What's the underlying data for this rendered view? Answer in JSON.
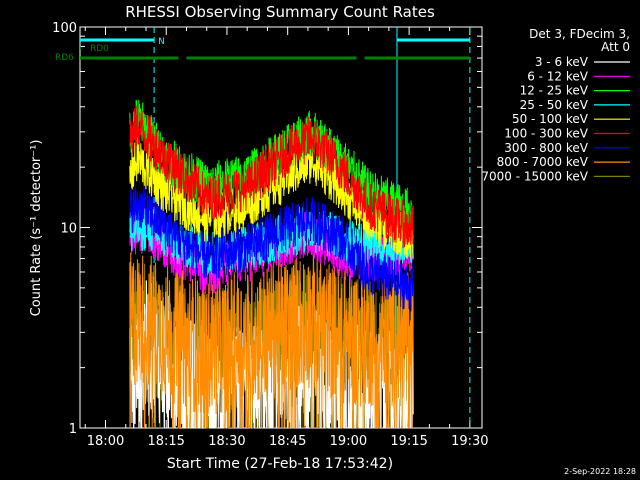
{
  "chart_data": {
    "type": "line",
    "title": "RHESSI Observing Summary Count Rates",
    "xlabel": "Start Time (27-Feb-18 17:53:42)",
    "ylabel": "Count Rate (s⁻¹ detector⁻¹)",
    "yscale": "log",
    "ylim": [
      1,
      100
    ],
    "xlim": [
      "17:53:42",
      "19:33:00"
    ],
    "x_ticks": [
      "18:00",
      "18:15",
      "18:30",
      "18:45",
      "19:00",
      "19:15",
      "19:30"
    ],
    "y_ticks": [
      "1",
      "10",
      "100"
    ],
    "legend_title": [
      "Det 3, FDecim 3,",
      "Att 0"
    ],
    "legend_position": "right",
    "data_start": "18:06",
    "data_end": "19:16",
    "series": [
      {
        "name": "3 - 6 keV",
        "color": "#ffffff",
        "x": [
          "18:06",
          "18:10",
          "18:15",
          "18:25",
          "18:40",
          "18:50",
          "19:00",
          "19:10",
          "19:15"
        ],
        "values": [
          1.6,
          2.5,
          2.2,
          1.4,
          1.6,
          2.0,
          1.5,
          1.4,
          1.3
        ]
      },
      {
        "name": "6 - 12 keV",
        "color": "#ff00ff",
        "x": [
          "18:06",
          "18:10",
          "18:15",
          "18:25",
          "18:40",
          "18:50",
          "19:00",
          "19:10",
          "19:15"
        ],
        "values": [
          9.0,
          10.0,
          8.0,
          6.0,
          7.5,
          9.5,
          7.0,
          7.0,
          8.0
        ]
      },
      {
        "name": "12 - 25 keV",
        "color": "#00ff00",
        "x": [
          "18:06",
          "18:08",
          "18:15",
          "18:25",
          "18:35",
          "18:45",
          "18:51",
          "18:58",
          "19:05",
          "19:15"
        ],
        "values": [
          30,
          35,
          22,
          16,
          18,
          25,
          30,
          22,
          15,
          12
        ]
      },
      {
        "name": "25 - 50 keV",
        "color": "#00ffff",
        "x": [
          "18:06",
          "18:10",
          "18:15",
          "18:25",
          "18:40",
          "18:50",
          "19:00",
          "19:10",
          "19:15"
        ],
        "values": [
          9.5,
          10.0,
          9.0,
          7.5,
          8.5,
          10.0,
          8.5,
          8.0,
          8.5
        ]
      },
      {
        "name": "50 - 100 keV",
        "color": "#ffff00",
        "x": [
          "18:06",
          "18:08",
          "18:15",
          "18:25",
          "18:35",
          "18:45",
          "18:51",
          "18:58",
          "19:05",
          "19:15"
        ],
        "values": [
          18,
          22,
          15,
          11,
          13,
          18,
          22,
          16,
          11,
          9
        ]
      },
      {
        "name": "100 - 300 keV",
        "color": "#ff0000",
        "x": [
          "18:06",
          "18:08",
          "18:15",
          "18:25",
          "18:35",
          "18:45",
          "18:51",
          "18:58",
          "19:05",
          "19:15"
        ],
        "values": [
          28,
          32,
          22,
          14,
          16,
          24,
          28,
          20,
          13,
          10
        ]
      },
      {
        "name": "300 - 800 keV",
        "color": "#0000ff",
        "x": [
          "18:06",
          "18:08",
          "18:15",
          "18:25",
          "18:35",
          "18:45",
          "18:51",
          "18:58",
          "19:05",
          "19:15"
        ],
        "values": [
          12,
          13,
          10,
          7,
          8,
          10,
          11,
          9,
          6,
          5
        ]
      },
      {
        "name": "800 - 7000 keV",
        "color": "#ff8c00",
        "x": [
          "18:06",
          "18:10",
          "18:15",
          "18:25",
          "18:40",
          "18:50",
          "19:00",
          "19:10",
          "19:15"
        ],
        "values": [
          3.5,
          3.5,
          3.0,
          2.5,
          3.0,
          3.5,
          2.8,
          2.8,
          3.0
        ]
      },
      {
        "name": "7000 - 15000 keV",
        "color": "#808000",
        "x": [
          "18:06",
          "18:10",
          "18:15",
          "18:25",
          "18:40",
          "18:50",
          "19:00",
          "19:10",
          "19:15"
        ],
        "values": [
          2.8,
          3.0,
          2.5,
          2.2,
          2.5,
          3.0,
          2.5,
          2.5,
          2.6
        ]
      }
    ],
    "flags": [
      {
        "name": "N",
        "color": "#00ffff",
        "segments": [
          [
            "17:53:42",
            "18:12"
          ],
          [
            "19:12",
            "19:30"
          ]
        ]
      },
      {
        "name": "RD0",
        "color": "#008000",
        "segments": [
          [
            "17:53:42",
            "17:54"
          ]
        ]
      },
      {
        "name": "RD6",
        "color": "#008000",
        "segments": [
          [
            "17:53:42",
            "18:18"
          ],
          [
            "18:20",
            "18:40"
          ],
          [
            "18:40",
            "19:02"
          ],
          [
            "19:04",
            "19:30"
          ]
        ]
      }
    ],
    "vlines": [
      {
        "time": "18:12",
        "style": "dashed",
        "color": "#00ffff"
      },
      {
        "time": "19:12",
        "style": "solid",
        "color": "#00ffff"
      },
      {
        "time": "19:30",
        "style": "dashed",
        "color": "#00ffff"
      }
    ]
  },
  "footer": {
    "date": "2-Sep-2022 18:28"
  }
}
